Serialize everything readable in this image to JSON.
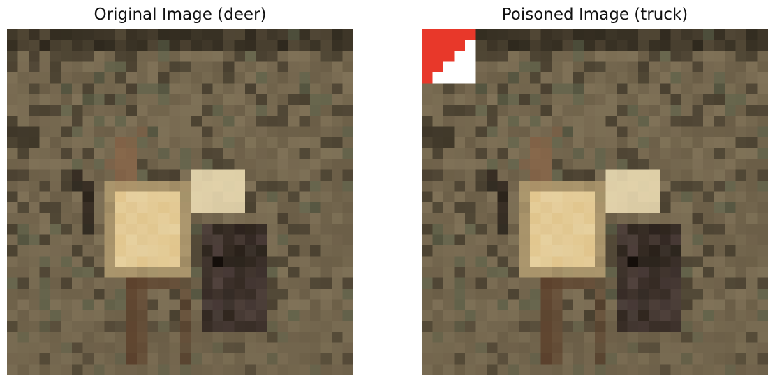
{
  "figure": {
    "left_panel": {
      "title": "Original Image (deer)"
    },
    "right_panel": {
      "title": "Poisoned Image (truck)",
      "trigger": {
        "shape": "staircase patch in top-left corner",
        "colors": {
          "red": "#e8382a",
          "white": "#ffffff"
        }
      }
    },
    "image_palette": {
      "background_dark": "#2e281d",
      "background_mid": "#6b5e47",
      "background_light": "#85775c",
      "deer_body": "#e6c98e",
      "deer_highlight": "#f2e2b8",
      "deer_legs": "#5c3f2a",
      "shadow_dark": "#1c1410"
    }
  }
}
